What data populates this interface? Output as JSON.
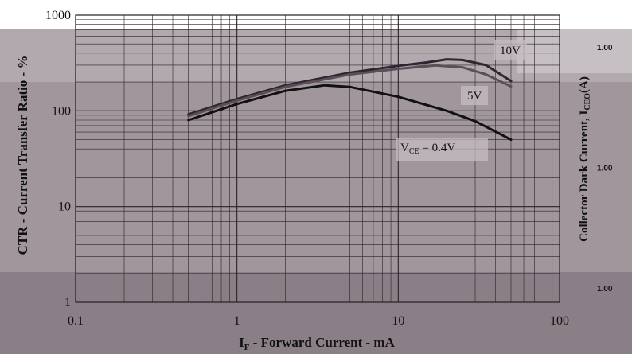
{
  "chart_data": {
    "type": "line",
    "xscale": "log",
    "yscale": "log",
    "xlim": [
      0.1,
      100
    ],
    "ylim": [
      1,
      1000
    ],
    "grid": true,
    "xlabel": {
      "main": "I",
      "sub": "F",
      "rest": " - Forward Current - mA"
    },
    "ylabel": "CTR - Current Transfer Ratio - %",
    "y2label": {
      "main": "Collector Dark Current, I",
      "sub": "CEO",
      "rest": "(A)"
    },
    "x_ticks": [
      {
        "value": 0.1,
        "label": "0.1"
      },
      {
        "value": 1,
        "label": "1"
      },
      {
        "value": 10,
        "label": "10"
      },
      {
        "value": 100,
        "label": "100"
      }
    ],
    "y_ticks": [
      {
        "value": 1,
        "label": "1"
      },
      {
        "value": 10,
        "label": "10"
      },
      {
        "value": 100,
        "label": "100"
      },
      {
        "value": 1000,
        "label": "1000"
      }
    ],
    "y2_ticks": [
      {
        "frac": 0.08,
        "label": "1.00"
      },
      {
        "frac": 0.5,
        "label": "1.00"
      },
      {
        "frac": 0.92,
        "label": "1.00"
      }
    ],
    "series": [
      {
        "name": "10V",
        "color": "#2e2630",
        "points": [
          [
            0.5,
            92
          ],
          [
            1,
            133
          ],
          [
            2,
            185
          ],
          [
            5,
            250
          ],
          [
            10,
            295
          ],
          [
            15,
            320
          ],
          [
            20,
            345
          ],
          [
            25,
            340
          ],
          [
            35,
            300
          ],
          [
            50,
            205
          ]
        ]
      },
      {
        "name": "5V",
        "color": "#5c4e58",
        "points": [
          [
            0.5,
            88
          ],
          [
            1,
            128
          ],
          [
            2,
            178
          ],
          [
            5,
            240
          ],
          [
            10,
            275
          ],
          [
            17,
            298
          ],
          [
            25,
            285
          ],
          [
            35,
            240
          ],
          [
            50,
            180
          ]
        ]
      },
      {
        "name_main": "V",
        "name_sub": "CE",
        "name_rest": " = 0.4V",
        "color": "#111111",
        "points": [
          [
            0.5,
            80
          ],
          [
            1,
            118
          ],
          [
            2,
            162
          ],
          [
            3.5,
            185
          ],
          [
            5,
            178
          ],
          [
            10,
            140
          ],
          [
            20,
            100
          ],
          [
            30,
            78
          ],
          [
            50,
            50
          ]
        ]
      }
    ]
  }
}
